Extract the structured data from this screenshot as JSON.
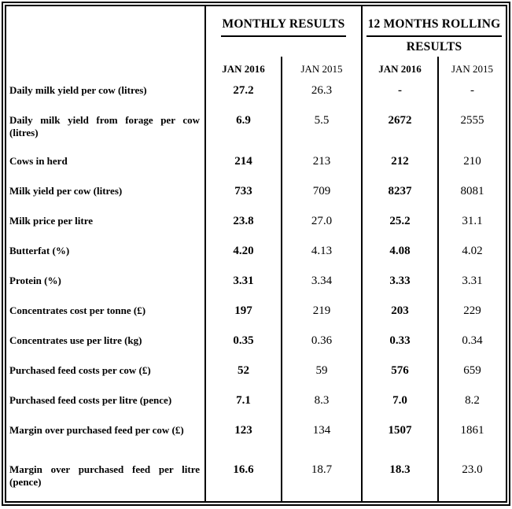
{
  "table": {
    "colors": {
      "border": "#000000",
      "text": "#000000",
      "background": "#ffffff"
    },
    "column_groups": {
      "monthly": {
        "title_lines": [
          "MONTHLY RESULTS",
          ""
        ]
      },
      "rolling": {
        "title_lines": [
          "12 MONTHS ROLLING",
          "RESULTS"
        ]
      }
    },
    "subheaders": {
      "monthly_jan2016": "JAN 2016",
      "monthly_jan2015": "JAN 2015",
      "rolling_jan2016": "JAN 2016",
      "rolling_jan2015": "JAN 2015"
    },
    "rows": [
      {
        "label": "Daily milk yield per cow (litres)",
        "values": [
          "27.2",
          "26.3",
          "-",
          "-"
        ],
        "size": "normal"
      },
      {
        "label": "Daily milk yield from forage per cow (litres)",
        "values": [
          "6.9",
          "5.5",
          "2672",
          "2555"
        ],
        "size": "tall"
      },
      {
        "label": "Cows in herd",
        "values": [
          "214",
          "213",
          "212",
          "210"
        ],
        "size": "normal"
      },
      {
        "label": "Milk yield per cow (litres)",
        "values": [
          "733",
          "709",
          "8237",
          "8081"
        ],
        "size": "normal"
      },
      {
        "label": "Milk price per litre",
        "values": [
          "23.8",
          "27.0",
          "25.2",
          "31.1"
        ],
        "size": "normal"
      },
      {
        "label": "Butterfat (%)",
        "values": [
          "4.20",
          "4.13",
          "4.08",
          "4.02"
        ],
        "size": "normal"
      },
      {
        "label": "Protein (%)",
        "values": [
          "3.31",
          "3.34",
          "3.33",
          "3.31"
        ],
        "size": "normal"
      },
      {
        "label": "Concentrates cost per tonne (£)",
        "values": [
          "197",
          "219",
          "203",
          "229"
        ],
        "size": "normal"
      },
      {
        "label": "Concentrates use per litre (kg)",
        "values": [
          "0.35",
          "0.36",
          "0.33",
          "0.34"
        ],
        "size": "normal"
      },
      {
        "label": "Purchased feed costs per cow (£)",
        "values": [
          "52",
          "59",
          "576",
          "659"
        ],
        "size": "normal"
      },
      {
        "label": "Purchased feed costs per litre (pence)",
        "values": [
          "7.1",
          "8.3",
          "7.0",
          "8.2"
        ],
        "size": "normal"
      },
      {
        "label": "Margin over purchased feed per cow (£)",
        "values": [
          "123",
          "134",
          "1507",
          "1861"
        ],
        "size": "normal"
      },
      {
        "label": "Margin over purchased feed per litre (pence)",
        "values": [
          "16.6",
          "18.7",
          "18.3",
          "23.0"
        ],
        "size": "taller"
      }
    ]
  }
}
